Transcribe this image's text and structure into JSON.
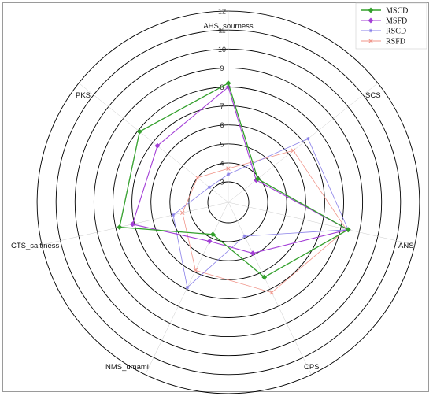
{
  "chart_data": {
    "type": "radar",
    "axes": [
      "AHS_sourness",
      "SCS",
      "ANS",
      "CPS",
      "NMS_umami",
      "CTS_saltiness",
      "PKS"
    ],
    "ticks": [
      3,
      4,
      5,
      6,
      7,
      8,
      9,
      10,
      11,
      12
    ],
    "range": [
      3,
      12
    ],
    "series": [
      {
        "name": "MSCD",
        "color": "#33a02c",
        "marker": "diamond",
        "values": [
          8.2,
          3.9,
          8.4,
          6.3,
          3.8,
          7.8,
          7.9
        ]
      },
      {
        "name": "MSFD",
        "color": "#a33ed6",
        "marker": "diamond",
        "values": [
          8.0,
          3.8,
          8.4,
          4.9,
          4.2,
          7.1,
          6.7
        ]
      },
      {
        "name": "RSCD",
        "color": "#8a80e8",
        "marker": "star",
        "values": [
          3.4,
          7.3,
          8.4,
          3.9,
          6.9,
          4.9,
          3.2
        ]
      },
      {
        "name": "RSFD",
        "color": "#f0958a",
        "marker": "cross",
        "values": [
          3.7,
          6.3,
          8.3,
          7.2,
          5.9,
          4.4,
          4.0
        ]
      }
    ],
    "legend_position": "top-right",
    "grid": true
  }
}
